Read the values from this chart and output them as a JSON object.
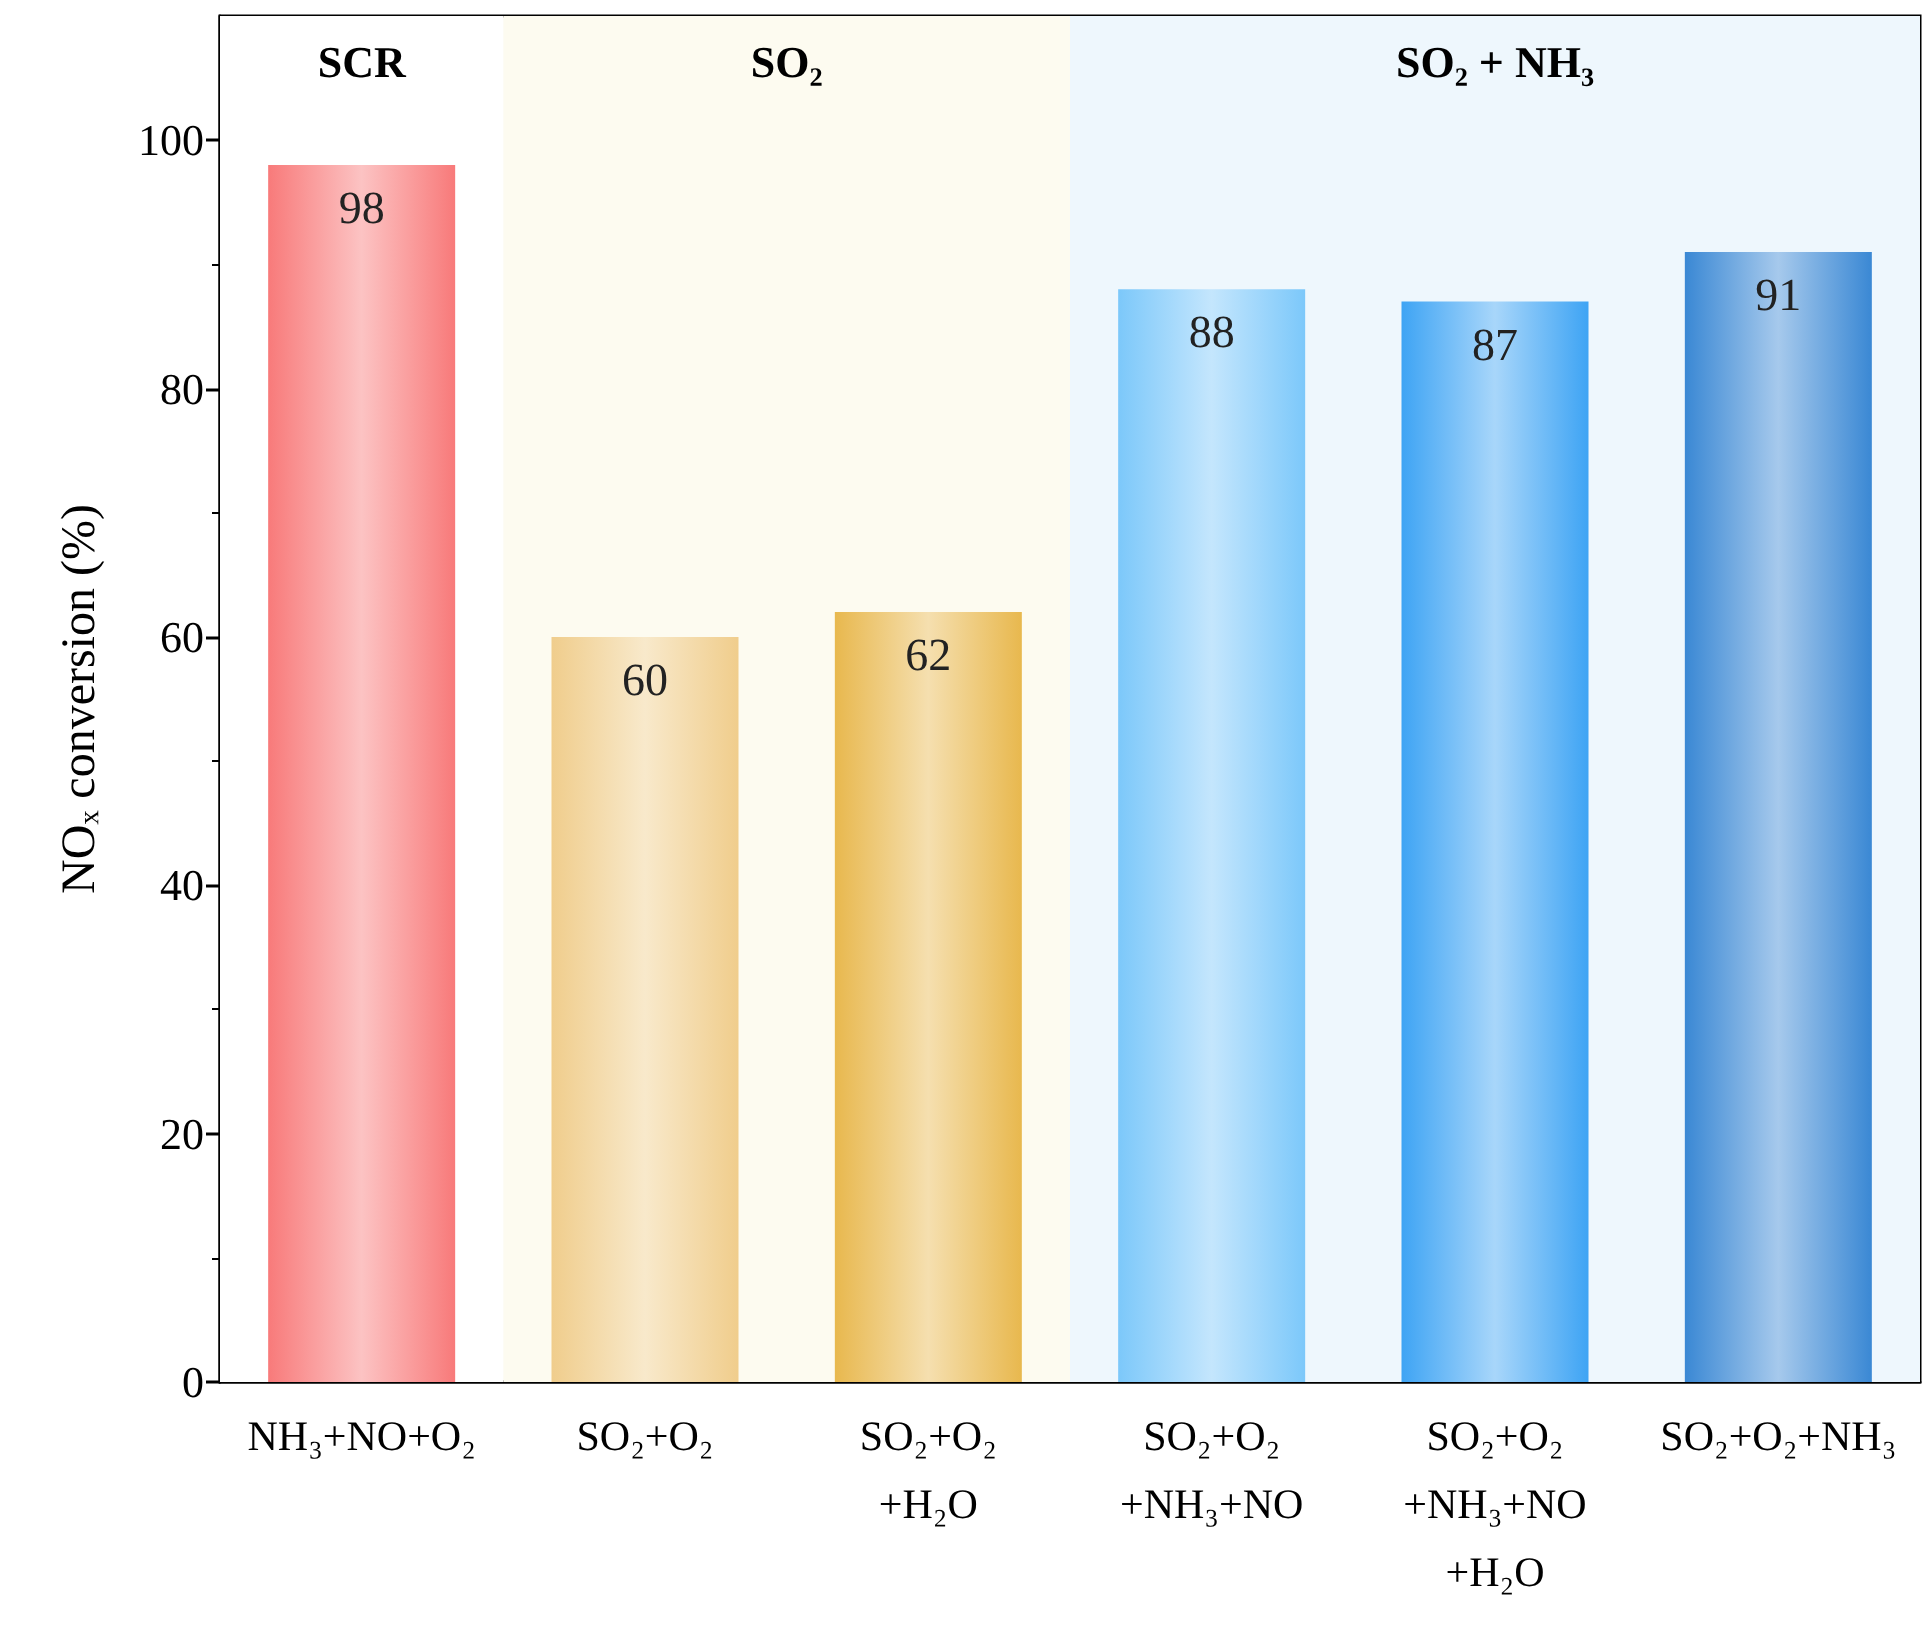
{
  "chart_data": {
    "type": "bar",
    "ylabel": "NOₓ conversion (%)",
    "categories": [
      "NH₃+NO+O₂",
      "SO₂+O₂",
      "SO₂+O₂\n+H₂O",
      "SO₂+O₂\n+NH₃+NO",
      "SO₂+O₂\n+NH₃+NO\n+H₂O",
      "SO₂+O₂+NH₃"
    ],
    "values": [
      98,
      60,
      62,
      88,
      87,
      91
    ],
    "colors": [
      "#f87a7a",
      "#f0cd8c",
      "#e8b84e",
      "#7cc8fa",
      "#3ea4f4",
      "#3a88d4"
    ],
    "ylim": [
      0,
      110
    ],
    "yticks": [
      0,
      20,
      40,
      60,
      80,
      100
    ],
    "bands": [
      {
        "axis": "x",
        "from": "NH₃+NO+O₂",
        "to": "NH₃+NO+O₂",
        "label": "SCR",
        "color": "#ffffff"
      },
      {
        "axis": "x",
        "from": "SO₂+O₂",
        "to": "SO₂+O₂\n+H₂O",
        "label": "SO₂",
        "color": "#fdfbf0"
      },
      {
        "axis": "x",
        "from": "SO₂+O₂\n+NH₃+NO",
        "to": "SO₂+O₂+NH₃",
        "label": "SO₂ + NH₃",
        "color": "#eef7fd"
      }
    ],
    "data_labels": true,
    "grid": false
  }
}
